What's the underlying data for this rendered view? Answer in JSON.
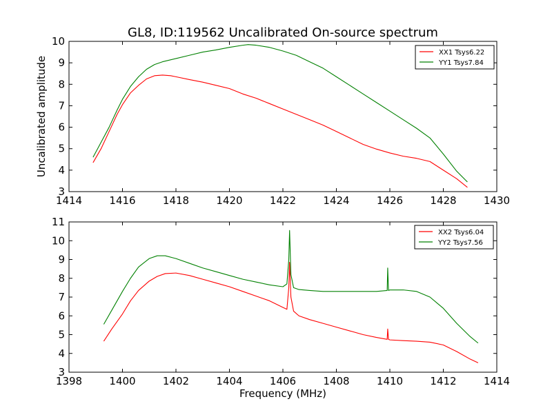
{
  "title": "GL8, ID:119562 Uncalibrated On-source spectrum",
  "chart_data": [
    {
      "type": "line",
      "ylabel": "Uncalibrated amplitude",
      "xlabel": "",
      "xlim": [
        1414,
        1430
      ],
      "ylim": [
        3,
        10
      ],
      "xticks": [
        "1414",
        "1416",
        "1418",
        "1420",
        "1422",
        "1424",
        "1426",
        "1428",
        "1430"
      ],
      "yticks": [
        "3",
        "4",
        "5",
        "6",
        "7",
        "8",
        "9",
        "10"
      ],
      "grid": false,
      "legend_position": "top-right",
      "series": [
        {
          "name": "XX1 Tsys6.22",
          "color": "#ff0000",
          "x": [
            1414.9,
            1415.2,
            1415.5,
            1415.8,
            1416.0,
            1416.3,
            1416.6,
            1416.9,
            1417.2,
            1417.5,
            1417.8,
            1418.0,
            1418.5,
            1419.0,
            1419.5,
            1420.0,
            1420.5,
            1421.0,
            1421.5,
            1422.0,
            1422.5,
            1423.0,
            1423.5,
            1424.0,
            1424.5,
            1425.0,
            1425.5,
            1426.0,
            1426.5,
            1427.0,
            1427.5,
            1428.0,
            1428.5,
            1428.9
          ],
          "y": [
            4.35,
            5.0,
            5.8,
            6.6,
            7.05,
            7.6,
            7.95,
            8.25,
            8.4,
            8.43,
            8.4,
            8.35,
            8.22,
            8.1,
            7.95,
            7.8,
            7.55,
            7.35,
            7.1,
            6.85,
            6.6,
            6.35,
            6.1,
            5.8,
            5.5,
            5.2,
            4.98,
            4.8,
            4.65,
            4.55,
            4.4,
            4.0,
            3.6,
            3.2
          ]
        },
        {
          "name": "YY1 Tsys7.84",
          "color": "#008000",
          "x": [
            1414.9,
            1415.2,
            1415.5,
            1415.8,
            1416.0,
            1416.3,
            1416.6,
            1416.9,
            1417.2,
            1417.5,
            1418.0,
            1418.5,
            1419.0,
            1419.5,
            1420.0,
            1420.5,
            1420.7,
            1421.0,
            1421.5,
            1422.0,
            1422.5,
            1423.0,
            1423.5,
            1424.0,
            1424.5,
            1425.0,
            1425.5,
            1426.0,
            1426.5,
            1427.0,
            1427.5,
            1428.0,
            1428.5,
            1428.9
          ],
          "y": [
            4.6,
            5.3,
            6.0,
            6.8,
            7.3,
            7.9,
            8.35,
            8.7,
            8.92,
            9.05,
            9.2,
            9.35,
            9.5,
            9.6,
            9.72,
            9.82,
            9.85,
            9.82,
            9.72,
            9.55,
            9.35,
            9.05,
            8.75,
            8.35,
            7.95,
            7.55,
            7.15,
            6.75,
            6.35,
            5.95,
            5.5,
            4.75,
            3.95,
            3.45
          ]
        }
      ]
    },
    {
      "type": "line",
      "ylabel": "",
      "xlabel": "Frequency (MHz)",
      "xlim": [
        1398,
        1414
      ],
      "ylim": [
        3,
        11
      ],
      "xticks": [
        "1398",
        "1400",
        "1402",
        "1404",
        "1406",
        "1408",
        "1410",
        "1412",
        "1414"
      ],
      "yticks": [
        "3",
        "4",
        "5",
        "6",
        "7",
        "8",
        "9",
        "10",
        "11"
      ],
      "grid": false,
      "legend_position": "top-right",
      "series": [
        {
          "name": "XX2 Tsys6.04",
          "color": "#ff0000",
          "x": [
            1399.3,
            1399.6,
            1400.0,
            1400.3,
            1400.6,
            1401.0,
            1401.3,
            1401.6,
            1402.0,
            1402.5,
            1403.0,
            1403.5,
            1404.0,
            1404.5,
            1405.0,
            1405.5,
            1406.0,
            1406.15,
            1406.22,
            1406.25,
            1406.3,
            1406.4,
            1406.6,
            1407.0,
            1407.5,
            1408.0,
            1408.5,
            1409.0,
            1409.5,
            1409.9,
            1409.92,
            1409.95,
            1410.0,
            1410.5,
            1411.0,
            1411.5,
            1412.0,
            1412.5,
            1413.0,
            1413.3
          ],
          "y": [
            4.65,
            5.3,
            6.1,
            6.8,
            7.35,
            7.85,
            8.1,
            8.25,
            8.28,
            8.15,
            7.95,
            7.75,
            7.55,
            7.3,
            7.05,
            6.8,
            6.45,
            6.35,
            7.5,
            8.85,
            7.0,
            6.25,
            6.0,
            5.8,
            5.6,
            5.4,
            5.2,
            5.0,
            4.85,
            4.75,
            5.3,
            4.75,
            4.72,
            4.68,
            4.65,
            4.6,
            4.45,
            4.1,
            3.7,
            3.5
          ]
        },
        {
          "name": "YY2 Tsys7.56",
          "color": "#008000",
          "x": [
            1399.3,
            1399.6,
            1400.0,
            1400.3,
            1400.6,
            1401.0,
            1401.3,
            1401.6,
            1402.0,
            1402.5,
            1403.0,
            1403.5,
            1404.0,
            1404.5,
            1405.0,
            1405.5,
            1406.0,
            1406.15,
            1406.22,
            1406.25,
            1406.3,
            1406.4,
            1406.6,
            1407.0,
            1407.5,
            1408.0,
            1408.5,
            1409.0,
            1409.5,
            1409.9,
            1409.92,
            1409.95,
            1410.0,
            1410.5,
            1411.0,
            1411.5,
            1412.0,
            1412.5,
            1413.0,
            1413.3
          ],
          "y": [
            5.55,
            6.3,
            7.3,
            8.0,
            8.6,
            9.05,
            9.2,
            9.2,
            9.05,
            8.8,
            8.55,
            8.35,
            8.15,
            7.95,
            7.8,
            7.65,
            7.55,
            7.7,
            9.0,
            10.55,
            8.2,
            7.5,
            7.4,
            7.35,
            7.3,
            7.3,
            7.3,
            7.3,
            7.3,
            7.35,
            8.55,
            7.35,
            7.38,
            7.38,
            7.3,
            7.0,
            6.4,
            5.6,
            4.9,
            4.55
          ]
        }
      ]
    }
  ]
}
